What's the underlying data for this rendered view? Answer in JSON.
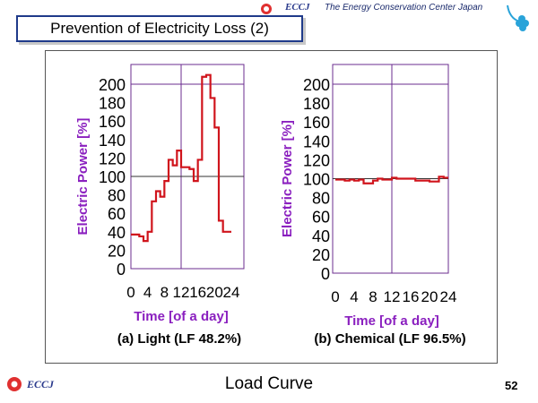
{
  "header": {
    "logo_text": "ECCJ",
    "org_name": "The Energy Conservation Center Japan"
  },
  "slide": {
    "title": "Prevention of Electricity Loss (2)",
    "footer_title": "Load Curve",
    "page_number": "52",
    "footer_logo_text": "ECCJ"
  },
  "colors": {
    "series": "#d0141c",
    "frame": "#6b2c8f",
    "axis_label": "#8a1fbf",
    "brand": "#1a2a6c"
  },
  "chart_data": [
    {
      "type": "line",
      "caption": "(a) Light (LF 48.2%)",
      "xlabel": "Time [of a day]",
      "ylabel": "Electric Power [%]",
      "xlim": [
        0,
        24
      ],
      "ylim": [
        0,
        200
      ],
      "xticks": [
        "0",
        "4",
        "8",
        "12",
        "16",
        "20",
        "24"
      ],
      "yticks": [
        "0",
        "20",
        "40",
        "60",
        "80",
        "100",
        "120",
        "140",
        "160",
        "180",
        "200"
      ],
      "reference_lines": [
        100,
        200
      ],
      "series": [
        {
          "type": "step",
          "x": [
            0,
            2,
            3,
            4,
            5,
            6,
            7,
            8,
            9,
            10,
            11,
            12,
            14,
            15,
            16,
            17,
            18,
            19,
            20,
            21,
            22,
            23,
            24
          ],
          "y": [
            37,
            35,
            30,
            40,
            73,
            84,
            78,
            95,
            118,
            112,
            128,
            110,
            108,
            95,
            118,
            208,
            210,
            185,
            153,
            52,
            40,
            40,
            40
          ]
        }
      ]
    },
    {
      "type": "line",
      "caption": "(b) Chemical (LF 96.5%)",
      "xlabel": "Time [of a day]",
      "ylabel": "Electric Power [%]",
      "xlim": [
        0,
        24
      ],
      "ylim": [
        0,
        200
      ],
      "xticks": [
        "0",
        "4",
        "8",
        "12",
        "16",
        "20",
        "24"
      ],
      "yticks": [
        "0",
        "20",
        "40",
        "60",
        "80",
        "100",
        "120",
        "140",
        "160",
        "180",
        "200"
      ],
      "reference_lines": [
        100,
        200
      ],
      "series": [
        {
          "type": "step",
          "x": [
            0,
            2,
            3,
            4,
            5,
            6,
            8,
            9,
            10,
            12,
            13,
            16,
            17,
            20,
            22,
            23,
            24
          ],
          "y": [
            99,
            98,
            99,
            98,
            99,
            95,
            98,
            100,
            99,
            101,
            100,
            100,
            98,
            97,
            102,
            101,
            101
          ]
        }
      ]
    }
  ]
}
